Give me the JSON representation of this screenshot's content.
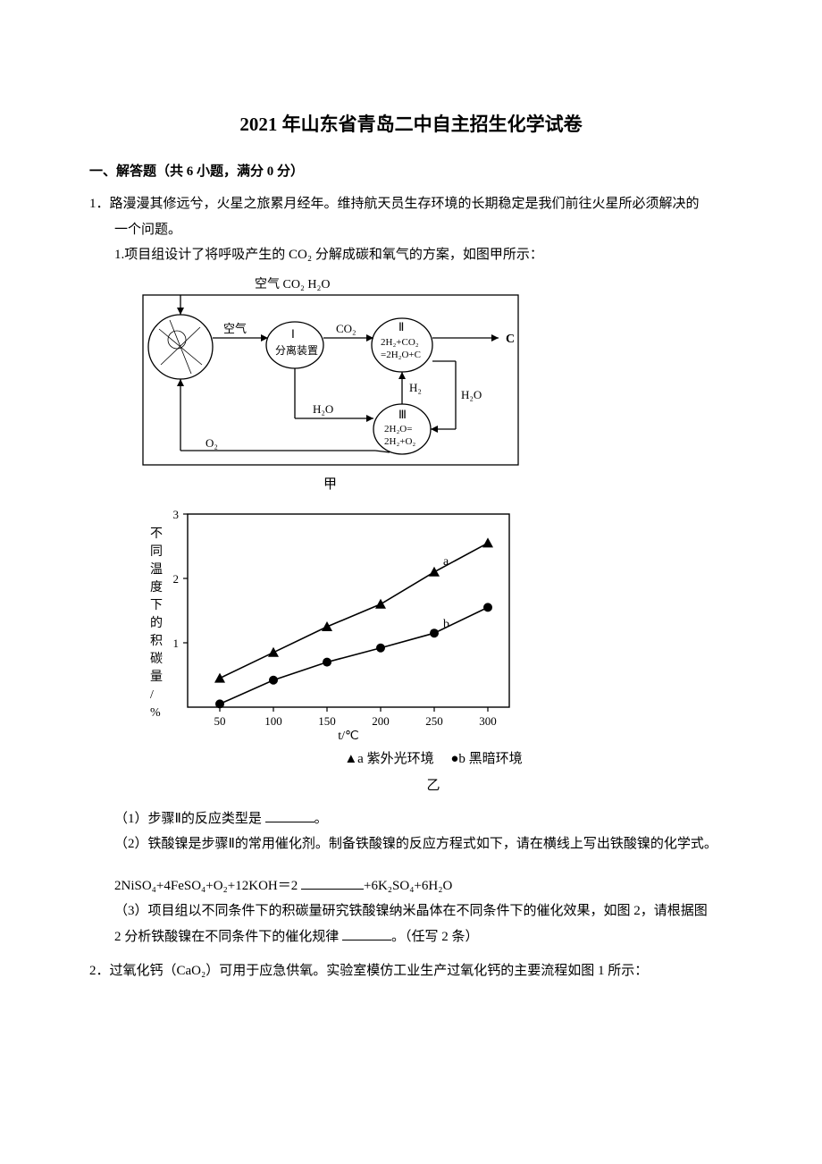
{
  "title": "2021 年山东省青岛二中自主招生化学试卷",
  "section": "一、解答题（共 6 小题，满分 0 分）",
  "q1": {
    "num": "1．",
    "stem_a": "路漫漫其修远兮，火星之旅累月经年。维持航天员生存环境的长期稳定是我们前往火星所必须解决的",
    "stem_b": "一个问题。",
    "sub1": "1.项目组设计了将呼吸产生的 CO₂ 分解成碳和氧气的方案，如图甲所示：",
    "diagram_jia": {
      "top_label": "空气 CO₂ H₂O",
      "air_arrow": "空气",
      "node1": "Ⅰ\n分离装置",
      "co2": "CO₂",
      "node2_line1": "Ⅱ",
      "node2_line2": "2H₂+CO₂",
      "node2_line3": "=2H₂O+C",
      "right_c": "C",
      "h2": "H₂",
      "h2o_right": "H₂O",
      "h2o_bottom": "H₂O",
      "o2": "O₂",
      "node3_line1": "Ⅲ",
      "node3_line2": "2H₂O=",
      "node3_line3": "2H₂+O₂",
      "caption": "甲"
    },
    "chart_yi": {
      "ylabel": "不同温度下的积碳量/%",
      "xlabel": "t/℃",
      "x_ticks": [
        50,
        100,
        150,
        200,
        250,
        300
      ],
      "y_ticks": [
        1,
        2,
        3
      ],
      "series_a_marker": "▲",
      "series_a_label": "a 紫外光环境",
      "series_b_marker": "●",
      "series_b_label": "b 黑暗环境",
      "annot_a": "a",
      "annot_b": "b",
      "series_a_points": [
        [
          50,
          0.45
        ],
        [
          100,
          0.85
        ],
        [
          150,
          1.25
        ],
        [
          200,
          1.6
        ],
        [
          250,
          2.1
        ],
        [
          300,
          2.55
        ]
      ],
      "series_b_points": [
        [
          50,
          0.05
        ],
        [
          100,
          0.42
        ],
        [
          150,
          0.7
        ],
        [
          200,
          0.92
        ],
        [
          250,
          1.15
        ],
        [
          300,
          1.55
        ]
      ],
      "caption": "乙",
      "axis_color": "#000000",
      "line_color": "#000000",
      "bg": "#ffffff"
    },
    "p1": "（1）步骤Ⅱ的反应类型是 ",
    "p1_tail": "。",
    "p2": "（2）铁酸镍是步骤Ⅱ的常用催化剂。制备铁酸镍的反应方程式如下，请在横线上写出铁酸镍的化学式。",
    "eq_left": "2NiSO₄+4FeSO₄+O₂+12KOH＝2 ",
    "eq_right": "+6K₂SO₄+6H₂O",
    "p3a": "（3）项目组以不同条件下的积碳量研究铁酸镍纳米晶体在不同条件下的催化效果，如图 2，请根据图",
    "p3b": "2 分析铁酸镍在不同条件下的催化规律 ",
    "p3_tail": "。（任写 2 条）"
  },
  "q2": {
    "num": "2．",
    "stem": "过氧化钙（CaO₂）可用于应急供氧。实验室模仿工业生产过氧化钙的主要流程如图 1 所示："
  }
}
